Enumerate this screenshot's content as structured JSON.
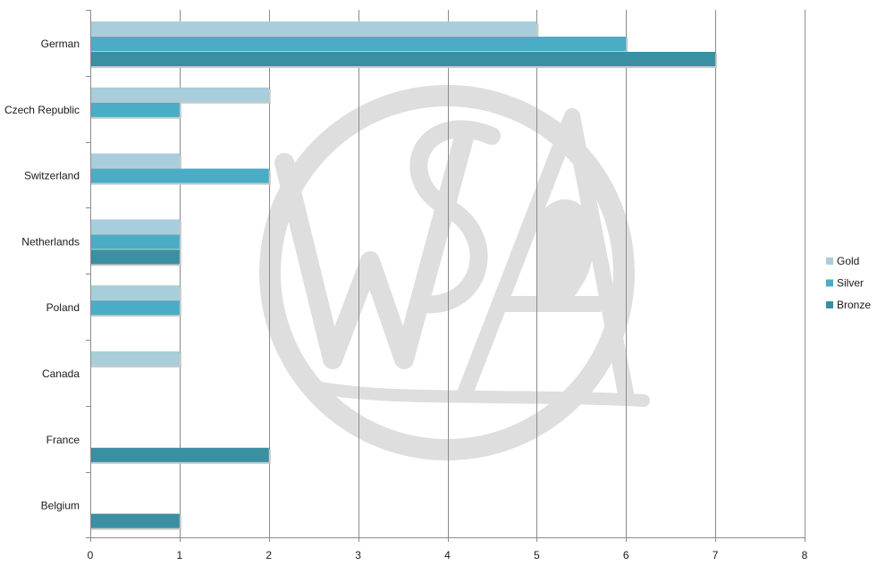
{
  "chart_data": {
    "type": "bar",
    "orientation": "horizontal",
    "title": "",
    "xlabel": "",
    "ylabel": "",
    "categories": [
      "German",
      "Czech Republic",
      "Switzerland",
      "Netherlands",
      "Poland",
      "Canada",
      "France",
      "Belgium"
    ],
    "series": [
      {
        "name": "Gold",
        "color": "#a8cedb",
        "values": [
          5,
          2,
          1,
          1,
          1,
          1,
          0,
          0
        ]
      },
      {
        "name": "Silver",
        "color": "#4bacc6",
        "values": [
          6,
          1,
          2,
          1,
          1,
          0,
          0,
          0
        ]
      },
      {
        "name": "Bronze",
        "color": "#3a8fa3",
        "values": [
          7,
          0,
          0,
          1,
          0,
          0,
          2,
          1
        ]
      }
    ],
    "xlim": [
      0,
      8
    ],
    "xticks": [
      "0",
      "1",
      "2",
      "3",
      "4",
      "5",
      "6",
      "7",
      "8"
    ],
    "grid": "vertical",
    "legend_position": "right"
  },
  "watermark": {
    "lettering": "WSA",
    "color": "#dedede"
  }
}
